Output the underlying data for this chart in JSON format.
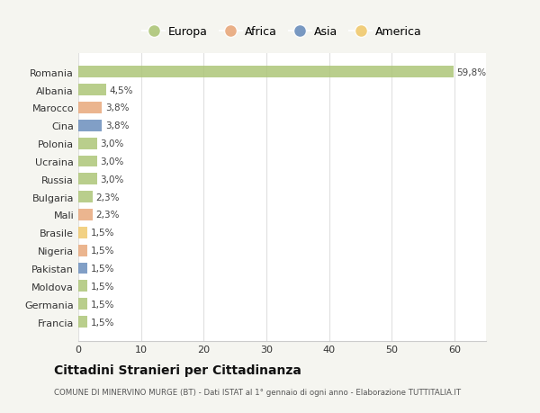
{
  "categories": [
    "Romania",
    "Albania",
    "Marocco",
    "Cina",
    "Polonia",
    "Ucraina",
    "Russia",
    "Bulgaria",
    "Mali",
    "Brasile",
    "Nigeria",
    "Pakistan",
    "Moldova",
    "Germania",
    "Francia"
  ],
  "values": [
    59.8,
    4.5,
    3.8,
    3.8,
    3.0,
    3.0,
    3.0,
    2.3,
    2.3,
    1.5,
    1.5,
    1.5,
    1.5,
    1.5,
    1.5
  ],
  "labels": [
    "59,8%",
    "4,5%",
    "3,8%",
    "3,8%",
    "3,0%",
    "3,0%",
    "3,0%",
    "2,3%",
    "2,3%",
    "1,5%",
    "1,5%",
    "1,5%",
    "1,5%",
    "1,5%",
    "1,5%"
  ],
  "colors": [
    "#adc678",
    "#adc678",
    "#e8a87c",
    "#6b8ebc",
    "#adc678",
    "#adc678",
    "#adc678",
    "#adc678",
    "#e8a87c",
    "#f0c96e",
    "#e8a87c",
    "#6b8ebc",
    "#adc678",
    "#adc678",
    "#adc678"
  ],
  "continent_labels": [
    "Europa",
    "Africa",
    "Asia",
    "America"
  ],
  "continent_colors": [
    "#adc678",
    "#e8a87c",
    "#6b8ebc",
    "#f0c96e"
  ],
  "title": "Cittadini Stranieri per Cittadinanza",
  "subtitle": "COMUNE DI MINERVINO MURGE (BT) - Dati ISTAT al 1° gennaio di ogni anno - Elaborazione TUTTITALIA.IT",
  "xlim": [
    0,
    65
  ],
  "xticks": [
    0,
    10,
    20,
    30,
    40,
    50,
    60
  ],
  "background_color": "#f5f5f0",
  "plot_bg_color": "#ffffff"
}
